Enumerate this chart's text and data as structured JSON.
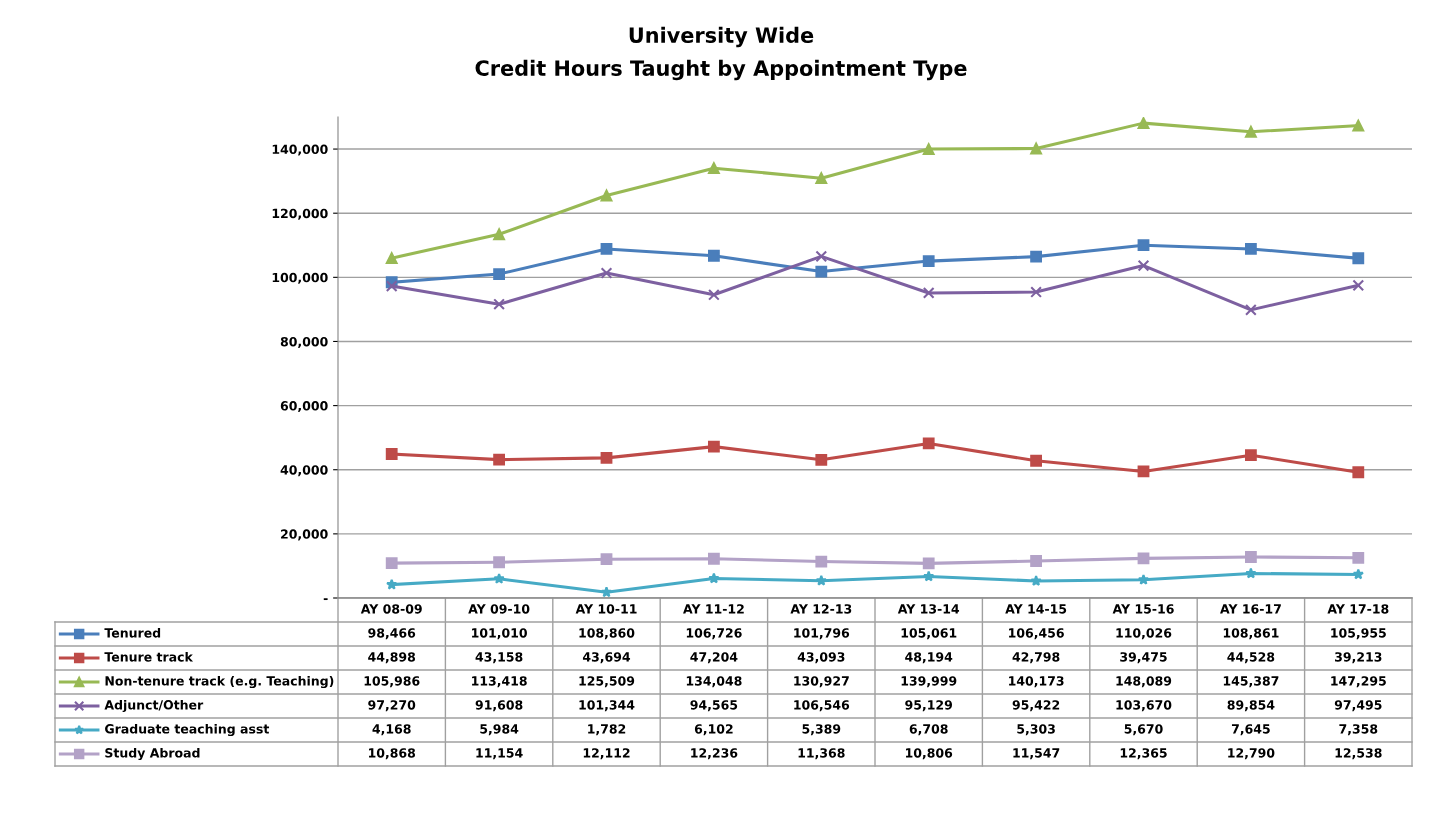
{
  "chart_data": {
    "type": "line",
    "title": "University Wide",
    "subtitle": "Credit Hours Taught by Appointment Type",
    "categories": [
      "AY 08-09",
      "AY 09-10",
      "AY 10-11",
      "AY 11-12",
      "AY 12-13",
      "AY 13-14",
      "AY 14-15",
      "AY 15-16",
      "AY 16-17",
      "AY 17-18"
    ],
    "series": [
      {
        "name": "Tenured",
        "color": "#4a7ebb",
        "marker": "square",
        "values": [
          98466,
          101010,
          108860,
          106726,
          101796,
          105061,
          106456,
          110026,
          108861,
          105955
        ],
        "value_labels": [
          "98,466",
          "101,010",
          "108,860",
          "106,726",
          "101,796",
          "105,061",
          "106,456",
          "110,026",
          "108,861",
          "105,955"
        ]
      },
      {
        "name": "Tenure track",
        "color": "#be4b48",
        "marker": "square",
        "values": [
          44898,
          43158,
          43694,
          47204,
          43093,
          48194,
          42798,
          39475,
          44528,
          39213
        ],
        "value_labels": [
          "44,898",
          "43,158",
          "43,694",
          "47,204",
          "43,093",
          "48,194",
          "42,798",
          "39,475",
          "44,528",
          "39,213"
        ]
      },
      {
        "name": "Non-tenure track (e.g. Teaching)",
        "color": "#98b954",
        "marker": "triangle",
        "values": [
          105986,
          113418,
          125509,
          134048,
          130927,
          139999,
          140173,
          148089,
          145387,
          147295
        ],
        "value_labels": [
          "105,986",
          "113,418",
          "125,509",
          "134,048",
          "130,927",
          "139,999",
          "140,173",
          "148,089",
          "145,387",
          "147,295"
        ]
      },
      {
        "name": "Adjunct/Other",
        "color": "#7d60a0",
        "marker": "cross",
        "values": [
          97270,
          91608,
          101344,
          94565,
          106546,
          95129,
          95422,
          103670,
          89854,
          97495
        ],
        "value_labels": [
          "97,270",
          "91,608",
          "101,344",
          "94,565",
          "106,546",
          "95,129",
          "95,422",
          "103,670",
          "89,854",
          "97,495"
        ]
      },
      {
        "name": "Graduate teaching asst",
        "color": "#46aac5",
        "marker": "star",
        "values": [
          4168,
          5984,
          1782,
          6102,
          5389,
          6708,
          5303,
          5670,
          7645,
          7358
        ],
        "value_labels": [
          "4,168",
          "5,984",
          "1,782",
          "6,102",
          "5,389",
          "6,708",
          "5,303",
          "5,670",
          "7,645",
          "7,358"
        ]
      },
      {
        "name": "Study Abroad",
        "color": "#b3a2c7",
        "marker": "square",
        "values": [
          10868,
          11154,
          12112,
          12236,
          11368,
          10806,
          11547,
          12365,
          12790,
          12538
        ],
        "value_labels": [
          "10,868",
          "11,154",
          "12,112",
          "12,236",
          "11,368",
          "10,806",
          "11,547",
          "12,365",
          "12,790",
          "12,538"
        ]
      }
    ],
    "ylim": [
      0,
      150000
    ],
    "yticks": [
      {
        "value": 0,
        "label": "-"
      },
      {
        "value": 20000,
        "label": "20,000"
      },
      {
        "value": 40000,
        "label": "40,000"
      },
      {
        "value": 60000,
        "label": "60,000"
      },
      {
        "value": 80000,
        "label": "80,000"
      },
      {
        "value": 100000,
        "label": "100,000"
      },
      {
        "value": 120000,
        "label": "120,000"
      },
      {
        "value": 140000,
        "label": "140,000"
      }
    ],
    "grid": "y",
    "legend": "bottom",
    "line_style": "solid",
    "tick_labels": "y"
  }
}
